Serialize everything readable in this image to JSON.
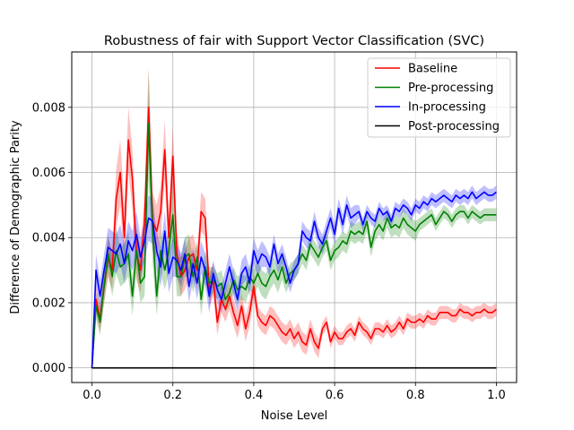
{
  "chart_data": {
    "type": "line",
    "title": "Robustness of fair with Support Vector Classification (SVC)",
    "xlabel": "Noise Level",
    "ylabel": "Difference of Demographic Parity",
    "xlim": [
      -0.05,
      1.05
    ],
    "ylim": [
      -0.00045,
      0.0097
    ],
    "xticks": [
      0.0,
      0.2,
      0.4,
      0.6,
      0.8,
      1.0
    ],
    "xtick_labels": [
      "0.0",
      "0.2",
      "0.4",
      "0.6",
      "0.8",
      "1.0"
    ],
    "yticks": [
      0.0,
      0.002,
      0.004,
      0.006,
      0.008
    ],
    "ytick_labels": [
      "0.000",
      "0.002",
      "0.004",
      "0.006",
      "0.008"
    ],
    "grid": true,
    "legend_position": "top-right",
    "x": [
      0.0,
      0.01,
      0.02,
      0.03,
      0.04,
      0.05,
      0.06,
      0.07,
      0.08,
      0.09,
      0.1,
      0.11,
      0.12,
      0.13,
      0.14,
      0.15,
      0.16,
      0.17,
      0.18,
      0.19,
      0.2,
      0.21,
      0.22,
      0.23,
      0.24,
      0.25,
      0.26,
      0.27,
      0.28,
      0.29,
      0.3,
      0.31,
      0.32,
      0.33,
      0.34,
      0.35,
      0.36,
      0.37,
      0.38,
      0.39,
      0.4,
      0.41,
      0.42,
      0.43,
      0.44,
      0.45,
      0.46,
      0.47,
      0.48,
      0.49,
      0.5,
      0.51,
      0.52,
      0.53,
      0.54,
      0.55,
      0.56,
      0.57,
      0.58,
      0.59,
      0.6,
      0.61,
      0.62,
      0.63,
      0.64,
      0.65,
      0.66,
      0.67,
      0.68,
      0.69,
      0.7,
      0.71,
      0.72,
      0.73,
      0.74,
      0.75,
      0.76,
      0.77,
      0.78,
      0.79,
      0.8,
      0.81,
      0.82,
      0.83,
      0.84,
      0.85,
      0.86,
      0.87,
      0.88,
      0.89,
      0.9,
      0.91,
      0.92,
      0.93,
      0.94,
      0.95,
      0.96,
      0.97,
      0.98,
      0.99,
      1.0
    ],
    "series": [
      {
        "name": "Baseline",
        "color": "#ff0000",
        "band_color": "#ff0000",
        "values": [
          0.0,
          0.0021,
          0.0015,
          0.0025,
          0.0034,
          0.003,
          0.0052,
          0.006,
          0.004,
          0.007,
          0.0058,
          0.0035,
          0.003,
          0.0045,
          0.008,
          0.0045,
          0.0042,
          0.0048,
          0.0067,
          0.004,
          0.0065,
          0.0035,
          0.0028,
          0.003,
          0.0034,
          0.0035,
          0.003,
          0.0048,
          0.0046,
          0.0024,
          0.0027,
          0.0014,
          0.0021,
          0.0018,
          0.0022,
          0.0017,
          0.0013,
          0.0019,
          0.0012,
          0.0017,
          0.0025,
          0.0016,
          0.0014,
          0.0013,
          0.0016,
          0.0015,
          0.0013,
          0.0011,
          0.001,
          0.0012,
          0.0009,
          0.0011,
          0.0008,
          0.0007,
          0.0012,
          0.0008,
          0.0006,
          0.0012,
          0.0014,
          0.0008,
          0.0011,
          0.0009,
          0.0009,
          0.0011,
          0.0012,
          0.001,
          0.0014,
          0.0012,
          0.0011,
          0.0009,
          0.0012,
          0.0012,
          0.0011,
          0.0013,
          0.0011,
          0.0012,
          0.0014,
          0.0012,
          0.0015,
          0.0014,
          0.0014,
          0.0015,
          0.0014,
          0.0016,
          0.0015,
          0.0015,
          0.0017,
          0.0017,
          0.0017,
          0.0016,
          0.0016,
          0.0018,
          0.0017,
          0.0017,
          0.0016,
          0.0017,
          0.0017,
          0.0018,
          0.0017,
          0.0017,
          0.0018
        ],
        "spread": [
          0.0,
          0.0004,
          0.0004,
          0.0005,
          0.0006,
          0.0006,
          0.0009,
          0.001,
          0.0009,
          0.001,
          0.0009,
          0.0008,
          0.0007,
          0.0008,
          0.0012,
          0.0009,
          0.0008,
          0.0008,
          0.0009,
          0.0008,
          0.0009,
          0.0007,
          0.0006,
          0.0006,
          0.0006,
          0.0006,
          0.0006,
          0.0006,
          0.0006,
          0.0005,
          0.0005,
          0.0004,
          0.0004,
          0.0004,
          0.0004,
          0.0004,
          0.0004,
          0.0004,
          0.0004,
          0.0004,
          0.0004,
          0.0003,
          0.0003,
          0.0003,
          0.0003,
          0.0003,
          0.0003,
          0.0003,
          0.0003,
          0.0003,
          0.0003,
          0.0003,
          0.0003,
          0.0003,
          0.0003,
          0.0003,
          0.0003,
          0.0002,
          0.0002,
          0.0002,
          0.0002,
          0.0002,
          0.0002,
          0.0002,
          0.0002,
          0.0002,
          0.0002,
          0.0002,
          0.0002,
          0.0002,
          0.0002,
          0.0002,
          0.0002,
          0.0002,
          0.0002,
          0.0002,
          0.0002,
          0.0002,
          0.0002,
          0.0002,
          0.0002,
          0.0002,
          0.0002,
          0.0002,
          0.0002,
          0.0002,
          0.0002,
          0.0002,
          0.0002,
          0.0002,
          0.0002,
          0.0002,
          0.0002,
          0.0002,
          0.0002,
          0.0002,
          0.0002,
          0.0002,
          0.0002,
          0.0002,
          0.0002
        ]
      },
      {
        "name": "Pre-processing",
        "color": "#008000",
        "band_color": "#008000",
        "values": [
          0.0,
          0.0019,
          0.0014,
          0.0025,
          0.0035,
          0.0028,
          0.0036,
          0.0031,
          0.0032,
          0.0035,
          0.0022,
          0.0036,
          0.0026,
          0.0028,
          0.0075,
          0.0042,
          0.0022,
          0.0036,
          0.003,
          0.0036,
          0.0047,
          0.0028,
          0.0028,
          0.0034,
          0.0035,
          0.0028,
          0.0034,
          0.0021,
          0.0031,
          0.0026,
          0.0027,
          0.0025,
          0.0026,
          0.0021,
          0.0023,
          0.0027,
          0.0024,
          0.0025,
          0.0024,
          0.0028,
          0.0026,
          0.0029,
          0.0026,
          0.0025,
          0.0028,
          0.003,
          0.0027,
          0.0031,
          0.0026,
          0.0029,
          0.003,
          0.0032,
          0.0035,
          0.0033,
          0.0038,
          0.0036,
          0.0034,
          0.0037,
          0.0039,
          0.0033,
          0.0036,
          0.0037,
          0.0039,
          0.0038,
          0.0042,
          0.0041,
          0.0042,
          0.0041,
          0.0045,
          0.0037,
          0.0042,
          0.0044,
          0.0042,
          0.0046,
          0.0043,
          0.0044,
          0.0043,
          0.0046,
          0.0044,
          0.0043,
          0.0042,
          0.0044,
          0.0045,
          0.0046,
          0.0047,
          0.0044,
          0.0046,
          0.0048,
          0.0047,
          0.0045,
          0.0047,
          0.0048,
          0.0048,
          0.0046,
          0.0048,
          0.0047,
          0.0046,
          0.0047,
          0.0047,
          0.0047,
          0.0047
        ],
        "spread": [
          0.0,
          0.0004,
          0.0004,
          0.0005,
          0.0006,
          0.0006,
          0.0007,
          0.0006,
          0.0006,
          0.0007,
          0.0006,
          0.0007,
          0.0006,
          0.0006,
          0.0017,
          0.001,
          0.0006,
          0.0007,
          0.0006,
          0.0007,
          0.0008,
          0.0006,
          0.0006,
          0.0006,
          0.0006,
          0.0005,
          0.0005,
          0.0005,
          0.0005,
          0.0005,
          0.0004,
          0.0004,
          0.0004,
          0.0004,
          0.0004,
          0.0004,
          0.0004,
          0.0004,
          0.0004,
          0.0004,
          0.0004,
          0.0004,
          0.0004,
          0.0004,
          0.0004,
          0.0004,
          0.0004,
          0.0004,
          0.0003,
          0.0003,
          0.0003,
          0.0003,
          0.0003,
          0.0003,
          0.0003,
          0.0003,
          0.0003,
          0.0003,
          0.0003,
          0.0003,
          0.0003,
          0.0003,
          0.0003,
          0.0003,
          0.0003,
          0.0003,
          0.0003,
          0.0003,
          0.0003,
          0.0003,
          0.0003,
          0.0003,
          0.0003,
          0.0003,
          0.0003,
          0.0003,
          0.0003,
          0.0003,
          0.0003,
          0.0003,
          0.0003,
          0.0002,
          0.0002,
          0.0002,
          0.0002,
          0.0002,
          0.0002,
          0.0002,
          0.0002,
          0.0002,
          0.0002,
          0.0002,
          0.0002,
          0.0002,
          0.0002,
          0.0002,
          0.0002,
          0.0002,
          0.0002,
          0.0002,
          0.0002
        ]
      },
      {
        "name": "In-processing",
        "color": "#0000ff",
        "band_color": "#0000ff",
        "values": [
          0.0,
          0.003,
          0.0022,
          0.003,
          0.0037,
          0.0036,
          0.0035,
          0.0038,
          0.0032,
          0.0039,
          0.0036,
          0.0041,
          0.0034,
          0.0039,
          0.0046,
          0.0045,
          0.0036,
          0.0031,
          0.0042,
          0.0029,
          0.0034,
          0.0033,
          0.003,
          0.0035,
          0.0025,
          0.0032,
          0.0026,
          0.0034,
          0.003,
          0.0022,
          0.0029,
          0.0024,
          0.0021,
          0.0026,
          0.0031,
          0.0026,
          0.0021,
          0.0029,
          0.0031,
          0.0026,
          0.0036,
          0.0032,
          0.0035,
          0.0034,
          0.0031,
          0.0038,
          0.0032,
          0.0035,
          0.0031,
          0.0026,
          0.003,
          0.0032,
          0.0042,
          0.004,
          0.0039,
          0.0045,
          0.004,
          0.0038,
          0.0042,
          0.0046,
          0.0041,
          0.0049,
          0.0044,
          0.005,
          0.0046,
          0.0047,
          0.0048,
          0.0044,
          0.0048,
          0.0046,
          0.0045,
          0.0049,
          0.0047,
          0.0048,
          0.0045,
          0.0049,
          0.0048,
          0.005,
          0.0049,
          0.0047,
          0.005,
          0.0049,
          0.0051,
          0.005,
          0.0052,
          0.0051,
          0.0052,
          0.0053,
          0.0052,
          0.0051,
          0.0053,
          0.0052,
          0.0053,
          0.0052,
          0.0054,
          0.0052,
          0.0053,
          0.0054,
          0.0053,
          0.0053,
          0.0054
        ],
        "spread": [
          0.0,
          0.0005,
          0.0005,
          0.0005,
          0.0006,
          0.0006,
          0.0006,
          0.0006,
          0.0006,
          0.0006,
          0.0006,
          0.0007,
          0.0006,
          0.0006,
          0.0007,
          0.0007,
          0.0006,
          0.0006,
          0.0006,
          0.0006,
          0.0006,
          0.0005,
          0.0005,
          0.0005,
          0.0005,
          0.0005,
          0.0005,
          0.0005,
          0.0005,
          0.0005,
          0.0004,
          0.0004,
          0.0004,
          0.0004,
          0.0004,
          0.0004,
          0.0004,
          0.0004,
          0.0004,
          0.0004,
          0.0004,
          0.0004,
          0.0004,
          0.0003,
          0.0003,
          0.0003,
          0.0003,
          0.0003,
          0.0003,
          0.0003,
          0.0003,
          0.0003,
          0.0003,
          0.0003,
          0.0003,
          0.0003,
          0.0003,
          0.0003,
          0.0003,
          0.0003,
          0.0003,
          0.0003,
          0.0003,
          0.0003,
          0.0003,
          0.0003,
          0.0002,
          0.0002,
          0.0002,
          0.0002,
          0.0002,
          0.0002,
          0.0002,
          0.0002,
          0.0002,
          0.0002,
          0.0002,
          0.0002,
          0.0002,
          0.0002,
          0.0002,
          0.0002,
          0.0002,
          0.0002,
          0.0002,
          0.0002,
          0.0002,
          0.0002,
          0.0002,
          0.0002,
          0.0002,
          0.0002,
          0.0002,
          0.0002,
          0.0002,
          0.0002,
          0.0002,
          0.0002,
          0.0002,
          0.0002,
          0.0002
        ]
      },
      {
        "name": "Post-processing",
        "color": "#000000",
        "band_color": "#000000",
        "values": [
          0.0,
          0.0,
          0.0,
          0.0,
          0.0,
          0.0,
          0.0,
          0.0,
          0.0,
          0.0,
          0.0,
          0.0,
          0.0,
          0.0,
          0.0,
          0.0,
          0.0,
          0.0,
          0.0,
          0.0,
          0.0,
          0.0,
          0.0,
          0.0,
          0.0,
          0.0,
          0.0,
          0.0,
          0.0,
          0.0,
          0.0,
          0.0,
          0.0,
          0.0,
          0.0,
          0.0,
          0.0,
          0.0,
          0.0,
          0.0,
          0.0,
          0.0,
          0.0,
          0.0,
          0.0,
          0.0,
          0.0,
          0.0,
          0.0,
          0.0,
          0.0,
          0.0,
          0.0,
          0.0,
          0.0,
          0.0,
          0.0,
          0.0,
          0.0,
          0.0,
          0.0,
          0.0,
          0.0,
          0.0,
          0.0,
          0.0,
          0.0,
          0.0,
          0.0,
          0.0,
          0.0,
          0.0,
          0.0,
          0.0,
          0.0,
          0.0,
          0.0,
          0.0,
          0.0,
          0.0,
          0.0,
          0.0,
          0.0,
          0.0,
          0.0,
          0.0,
          0.0,
          0.0,
          0.0,
          0.0,
          0.0,
          0.0,
          0.0,
          0.0,
          0.0,
          0.0,
          0.0,
          0.0,
          0.0,
          0.0,
          0.0
        ],
        "spread": [
          0.0,
          0.0,
          0.0,
          0.0,
          0.0,
          0.0,
          0.0,
          0.0,
          0.0,
          0.0,
          0.0,
          0.0,
          0.0,
          0.0,
          0.0,
          0.0,
          0.0,
          0.0,
          0.0,
          0.0,
          0.0,
          0.0,
          0.0,
          0.0,
          0.0,
          0.0,
          0.0,
          0.0,
          0.0,
          0.0,
          0.0,
          0.0,
          0.0,
          0.0,
          0.0,
          0.0,
          0.0,
          0.0,
          0.0,
          0.0,
          0.0,
          0.0,
          0.0,
          0.0,
          0.0,
          0.0,
          0.0,
          0.0,
          0.0,
          0.0,
          0.0,
          0.0,
          0.0,
          0.0,
          0.0,
          0.0,
          0.0,
          0.0,
          0.0,
          0.0,
          0.0,
          0.0,
          0.0,
          0.0,
          0.0,
          0.0,
          0.0,
          0.0,
          0.0,
          0.0,
          0.0,
          0.0,
          0.0,
          0.0,
          0.0,
          0.0,
          0.0,
          0.0,
          0.0,
          0.0,
          0.0,
          0.0,
          0.0,
          0.0,
          0.0,
          0.0,
          0.0,
          0.0,
          0.0,
          0.0,
          0.0,
          0.0,
          0.0,
          0.0,
          0.0,
          0.0,
          0.0,
          0.0,
          0.0,
          0.0,
          0.0
        ]
      }
    ],
    "colors": {
      "grid": "#b0b0b0",
      "axes": "#000000",
      "legend_border": "#cccccc"
    }
  }
}
